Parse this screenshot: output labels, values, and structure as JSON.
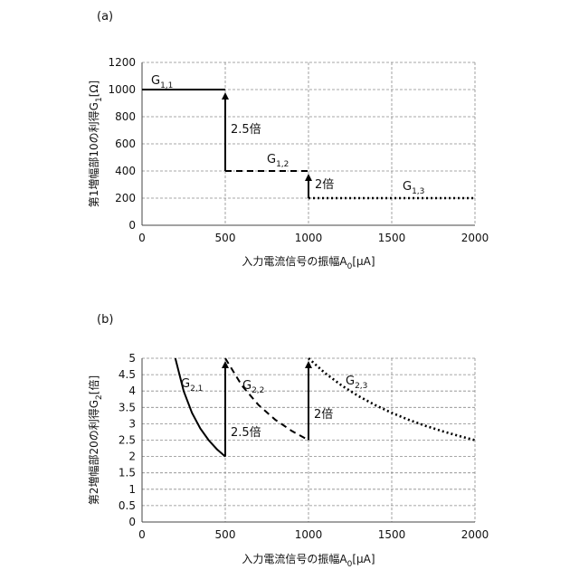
{
  "chart_data": [
    {
      "type": "line",
      "panel_label": "(a)",
      "xlabel": "入力電流信号の振幅A",
      "xlabel_sub": "0",
      "xlabel_suffix": "[μA]",
      "ylabel": "第1増幅部10の利得G",
      "ylabel_sub": "1",
      "ylabel_suffix": "[Ω]",
      "xlim": [
        0,
        2000
      ],
      "ylim": [
        0,
        1200
      ],
      "xticks": [
        0,
        500,
        1000,
        1500,
        2000
      ],
      "yticks": [
        0,
        200,
        400,
        600,
        800,
        1000,
        1200
      ],
      "grid": true,
      "series": [
        {
          "name": "G",
          "sub": "1,1",
          "style": "solid",
          "points": [
            [
              0,
              1000
            ],
            [
              500,
              1000
            ]
          ]
        },
        {
          "name": "G",
          "sub": "1,2",
          "style": "dashed",
          "points": [
            [
              500,
              400
            ],
            [
              1000,
              400
            ]
          ]
        },
        {
          "name": "G",
          "sub": "1,3",
          "style": "dotted",
          "points": [
            [
              1000,
              200
            ],
            [
              2000,
              200
            ]
          ]
        }
      ],
      "jumps": [
        {
          "x": 500,
          "from": 400,
          "to": 1000,
          "label": "2.5倍"
        },
        {
          "x": 1000,
          "from": 200,
          "to": 400,
          "label": "2倍"
        }
      ]
    },
    {
      "type": "line",
      "panel_label": "(b)",
      "xlabel": "入力電流信号の振幅A",
      "xlabel_sub": "0",
      "xlabel_suffix": "[μA]",
      "ylabel": "第2増幅部20の利得G",
      "ylabel_sub": "2",
      "ylabel_suffix": "[倍]",
      "xlim": [
        0,
        2000
      ],
      "ylim": [
        0,
        5
      ],
      "xticks": [
        0,
        500,
        1000,
        1500,
        2000
      ],
      "yticks": [
        0,
        0.5,
        1,
        1.5,
        2,
        2.5,
        3,
        3.5,
        4,
        4.5,
        5
      ],
      "grid": true,
      "series": [
        {
          "name": "G",
          "sub": "2,1",
          "style": "solid",
          "points": [
            [
              200,
              5
            ],
            [
              250,
              4
            ],
            [
              300,
              3.333
            ],
            [
              350,
              2.857
            ],
            [
              400,
              2.5
            ],
            [
              450,
              2.222
            ],
            [
              500,
              2
            ]
          ]
        },
        {
          "name": "G",
          "sub": "2,2",
          "style": "dashed",
          "points": [
            [
              500,
              5
            ],
            [
              600,
              4.167
            ],
            [
              700,
              3.571
            ],
            [
              800,
              3.125
            ],
            [
              900,
              2.778
            ],
            [
              1000,
              2.5
            ]
          ]
        },
        {
          "name": "G",
          "sub": "2,3",
          "style": "dotted",
          "points": [
            [
              1000,
              5
            ],
            [
              1100,
              4.545
            ],
            [
              1200,
              4.167
            ],
            [
              1300,
              3.846
            ],
            [
              1400,
              3.571
            ],
            [
              1500,
              3.333
            ],
            [
              1600,
              3.125
            ],
            [
              1700,
              2.941
            ],
            [
              1800,
              2.778
            ],
            [
              1900,
              2.632
            ],
            [
              2000,
              2.5
            ]
          ]
        }
      ],
      "jumps": [
        {
          "x": 500,
          "from": 2,
          "to": 5,
          "label": "2.5倍"
        },
        {
          "x": 1000,
          "from": 2.5,
          "to": 5,
          "label": "2倍"
        }
      ]
    }
  ]
}
